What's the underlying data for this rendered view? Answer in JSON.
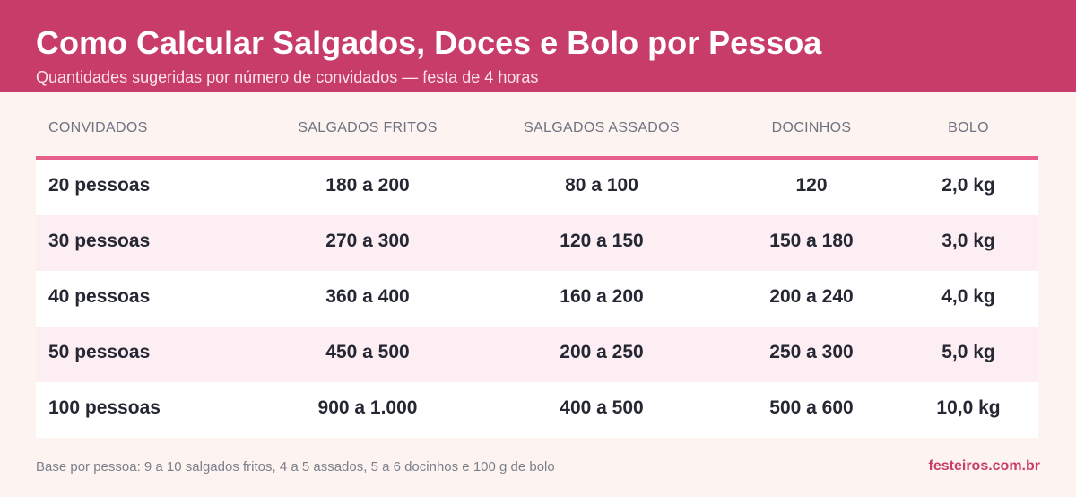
{
  "header": {
    "title": "Como Calcular Salgados, Doces e Bolo por Pessoa",
    "subtitle": "Quantidades sugeridas por número de convidados — festa de 4 horas"
  },
  "chart_data": {
    "type": "table",
    "columns": [
      "CONVIDADOS",
      "SALGADOS FRITOS",
      "SALGADOS ASSADOS",
      "DOCINHOS",
      "BOLO"
    ],
    "rows": [
      [
        "20 pessoas",
        "180 a 200",
        "80 a 100",
        "120",
        "2,0 kg"
      ],
      [
        "30 pessoas",
        "270 a 300",
        "120 a 150",
        "150 a 180",
        "3,0 kg"
      ],
      [
        "40 pessoas",
        "360 a 400",
        "160 a 200",
        "200 a 240",
        "4,0 kg"
      ],
      [
        "50 pessoas",
        "450 a 500",
        "200 a 250",
        "250 a 300",
        "5,0 kg"
      ],
      [
        "100 pessoas",
        "900 a 1.000",
        "400 a 500",
        "500 a 600",
        "10,0 kg"
      ]
    ]
  },
  "footer": {
    "note": "Base por pessoa: 9 a 10 salgados fritos, 4 a 5 assados, 5 a 6 docinhos e 100 g de bolo",
    "brand": "festeiros.com.br"
  },
  "colors": {
    "header_bg": "#c73c68",
    "accent_line": "#e7608b",
    "row_alt_bg": "#fdeef3",
    "page_bg": "#fdf4f1"
  }
}
